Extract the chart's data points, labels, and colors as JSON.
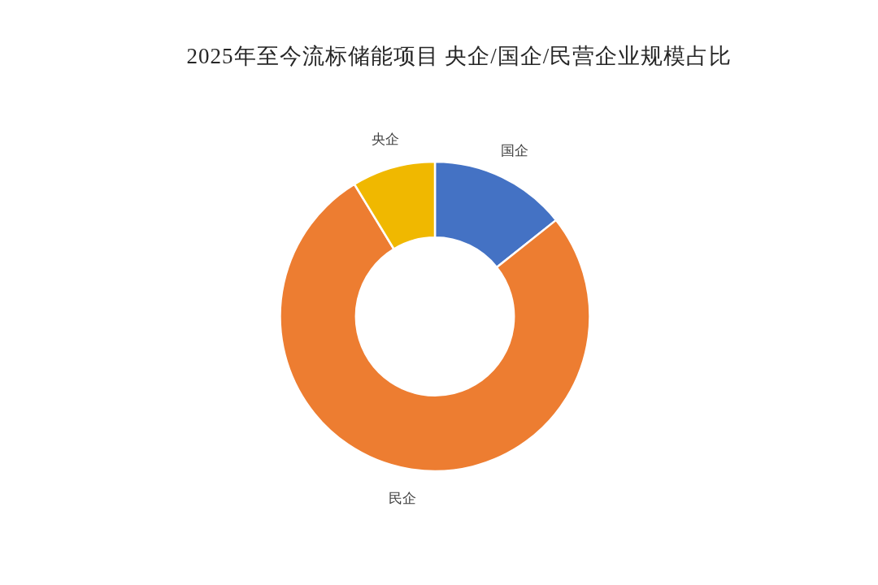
{
  "chart_data": {
    "type": "donut",
    "title": "2025年至今流标储能项目 央企/国企/民营企业规模占比",
    "categories": [
      "国企",
      "民企",
      "央企"
    ],
    "values": [
      14.3,
      77.0,
      8.7
    ],
    "colors": [
      "#4472c4",
      "#ed7d31",
      "#f0b800"
    ]
  }
}
